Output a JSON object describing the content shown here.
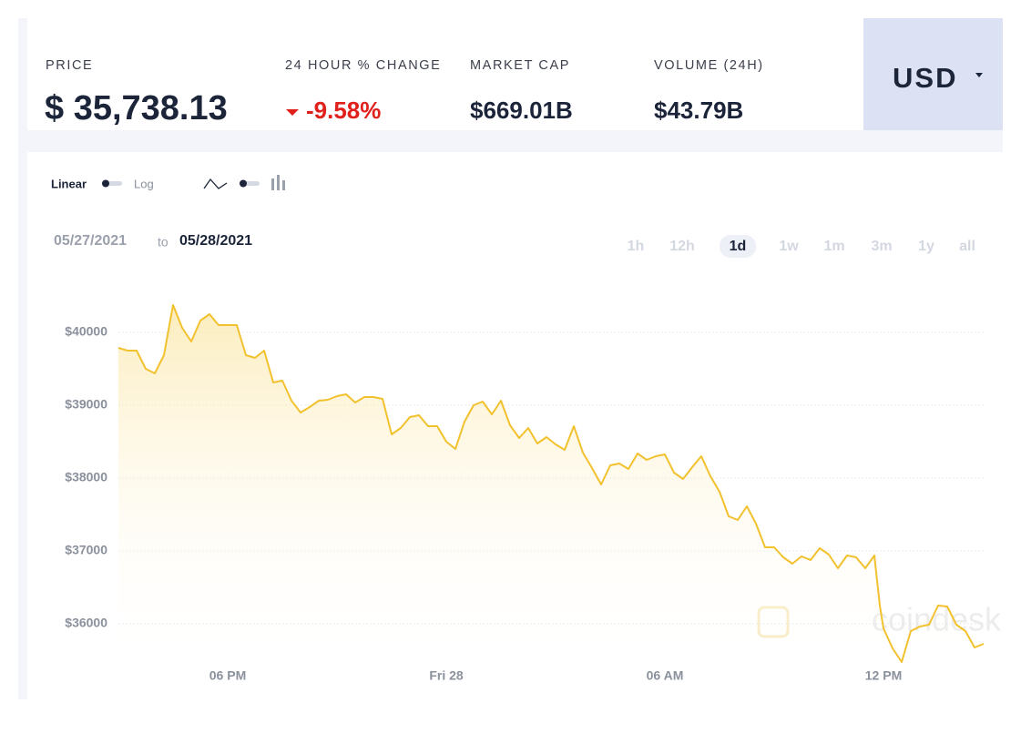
{
  "header": {
    "stats": [
      {
        "label": "PRICE",
        "value": "$ 35,738.13"
      },
      {
        "label": "24 HOUR % CHANGE",
        "value": "-9.58%"
      },
      {
        "label": "MARKET CAP",
        "value": "$669.01B"
      },
      {
        "label": "VOLUME (24H)",
        "value": "$43.79B"
      }
    ],
    "currency": "USD"
  },
  "controls": {
    "scale_options": [
      "Linear",
      "Log"
    ],
    "date_from": "05/27/2021",
    "date_sep": "to",
    "date_to": "05/28/2021",
    "ranges": [
      "1h",
      "12h",
      "1d",
      "1w",
      "1m",
      "3m",
      "1y",
      "all"
    ],
    "active_range": 2
  },
  "chart_data": {
    "type": "line",
    "color": "#f2c12e",
    "watermark": "coindesk",
    "grid": true,
    "x": [
      15,
      15.25,
      15.5,
      15.75,
      16,
      16.25,
      16.5,
      16.75,
      17,
      17.25,
      17.5,
      17.75,
      18,
      18.25,
      18.5,
      18.75,
      19,
      19.25,
      19.5,
      19.75,
      20,
      20.25,
      20.5,
      20.75,
      21,
      21.25,
      21.5,
      21.75,
      22,
      22.25,
      22.5,
      22.75,
      23,
      23.25,
      23.5,
      23.75,
      24,
      24.25,
      24.5,
      24.75,
      25,
      25.25,
      25.5,
      25.75,
      26,
      26.25,
      26.5,
      26.75,
      27,
      27.25,
      27.5,
      27.75,
      28,
      28.25,
      28.5,
      28.75,
      29,
      29.25,
      29.5,
      29.75,
      30,
      30.25,
      30.5,
      30.75,
      31,
      31.25,
      31.5,
      31.75,
      32,
      32.25,
      32.5,
      32.75,
      33,
      33.25,
      33.5,
      33.75,
      34,
      34.25,
      34.5,
      34.75,
      35,
      35.25,
      35.5,
      35.75,
      35.9,
      36,
      36.25,
      36.5,
      36.75,
      37,
      37.25,
      37.5,
      37.75,
      38,
      38.25,
      38.5,
      38.75
    ],
    "values": [
      39788,
      39750,
      39750,
      39500,
      39438,
      39688,
      40375,
      40063,
      39875,
      40163,
      40250,
      40100,
      40100,
      40100,
      39688,
      39650,
      39750,
      39313,
      39338,
      39063,
      38900,
      38975,
      39063,
      39075,
      39125,
      39150,
      39038,
      39113,
      39113,
      39088,
      38600,
      38688,
      38838,
      38863,
      38713,
      38713,
      38500,
      38400,
      38775,
      39000,
      39050,
      38875,
      39063,
      38725,
      38550,
      38688,
      38475,
      38563,
      38463,
      38388,
      38713,
      38350,
      38138,
      37913,
      38175,
      38200,
      38125,
      38338,
      38250,
      38300,
      38325,
      38075,
      37988,
      38150,
      38300,
      38025,
      37813,
      37475,
      37425,
      37613,
      37375,
      37050,
      37050,
      36913,
      36825,
      36925,
      36875,
      37038,
      36950,
      36763,
      36938,
      36913,
      36763,
      36938,
      36250,
      35938,
      35663,
      35475,
      35900,
      35963,
      35988,
      36250,
      36238,
      35988,
      35900,
      35675,
      35725
    ],
    "xlim": [
      15,
      38.75
    ],
    "xticks": [
      {
        "value": 18,
        "label": "06 PM"
      },
      {
        "value": 24,
        "label": "Fri 28"
      },
      {
        "value": 30,
        "label": "06 AM"
      },
      {
        "value": 36,
        "label": "12 PM"
      }
    ],
    "ylim": [
      35400,
      40800
    ],
    "yticks": [
      {
        "value": 36000,
        "label": "$36000"
      },
      {
        "value": 37000,
        "label": "$37000"
      },
      {
        "value": 38000,
        "label": "$38000"
      },
      {
        "value": 39000,
        "label": "$39000"
      },
      {
        "value": 40000,
        "label": "$40000"
      }
    ]
  }
}
